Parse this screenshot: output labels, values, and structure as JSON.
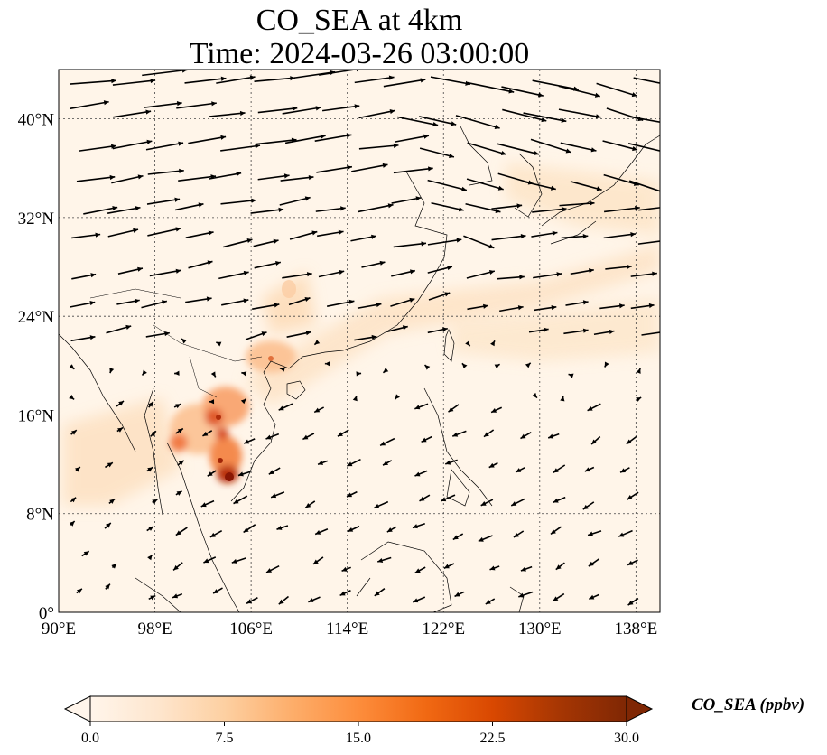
{
  "title": {
    "line1": "CO_SEA at 4km",
    "line2": "Time: 2024-03-26 03:00:00"
  },
  "axes": {
    "lon_ticks": [
      "90°E",
      "98°E",
      "106°E",
      "114°E",
      "122°E",
      "130°E",
      "138°E"
    ],
    "lat_ticks": [
      "0°",
      "8°N",
      "16°N",
      "24°N",
      "32°N",
      "40°N"
    ],
    "lon_values": [
      90,
      98,
      106,
      114,
      122,
      130,
      138
    ],
    "lat_values": [
      0,
      8,
      16,
      24,
      32,
      40
    ],
    "lon_range": [
      90,
      140
    ],
    "lat_range": [
      0,
      44
    ],
    "gridlines": "dotted"
  },
  "colorbar": {
    "label": "CO_SEA (ppbv)",
    "ticks": [
      "0.0",
      "7.5",
      "15.0",
      "22.5",
      "30.0"
    ],
    "range": [
      0,
      30
    ],
    "colormap": [
      "#fff5eb",
      "#fee6ce",
      "#fdd0a2",
      "#fdae6b",
      "#fd8d3c",
      "#f16913",
      "#d94801",
      "#a63603",
      "#7f2704"
    ],
    "extend": "both"
  },
  "colors": {
    "land_background": "#fff5e9",
    "coastline": "#000000",
    "arrow": "#000000"
  },
  "chart_data": {
    "type": "heatmap",
    "variable": "CO_SEA",
    "units": "ppbv",
    "hotspots": [
      {
        "lon": 103.5,
        "lat": 11.5,
        "value": 30
      },
      {
        "lon": 104.0,
        "lat": 13.5,
        "value": 24
      },
      {
        "lon": 103.0,
        "lat": 17.0,
        "value": 22
      },
      {
        "lon": 104.5,
        "lat": 18.0,
        "value": 18
      },
      {
        "lon": 100.5,
        "lat": 14.0,
        "value": 16
      },
      {
        "lon": 101.5,
        "lat": 16.0,
        "value": 15
      },
      {
        "lon": 107.0,
        "lat": 20.5,
        "value": 12
      },
      {
        "lon": 110.0,
        "lat": 26.5,
        "value": 8
      },
      {
        "lon": 118.0,
        "lat": 26.0,
        "value": 6
      },
      {
        "lon": 128.0,
        "lat": 27.0,
        "value": 6
      },
      {
        "lon": 135.0,
        "lat": 30.0,
        "value": 7
      },
      {
        "lon": 125.0,
        "lat": 22.0,
        "value": 5
      }
    ],
    "wind_field": "vector arrows; westerly flow north of ~20°N, easterly/northeasterly flow south of ~20°N"
  }
}
